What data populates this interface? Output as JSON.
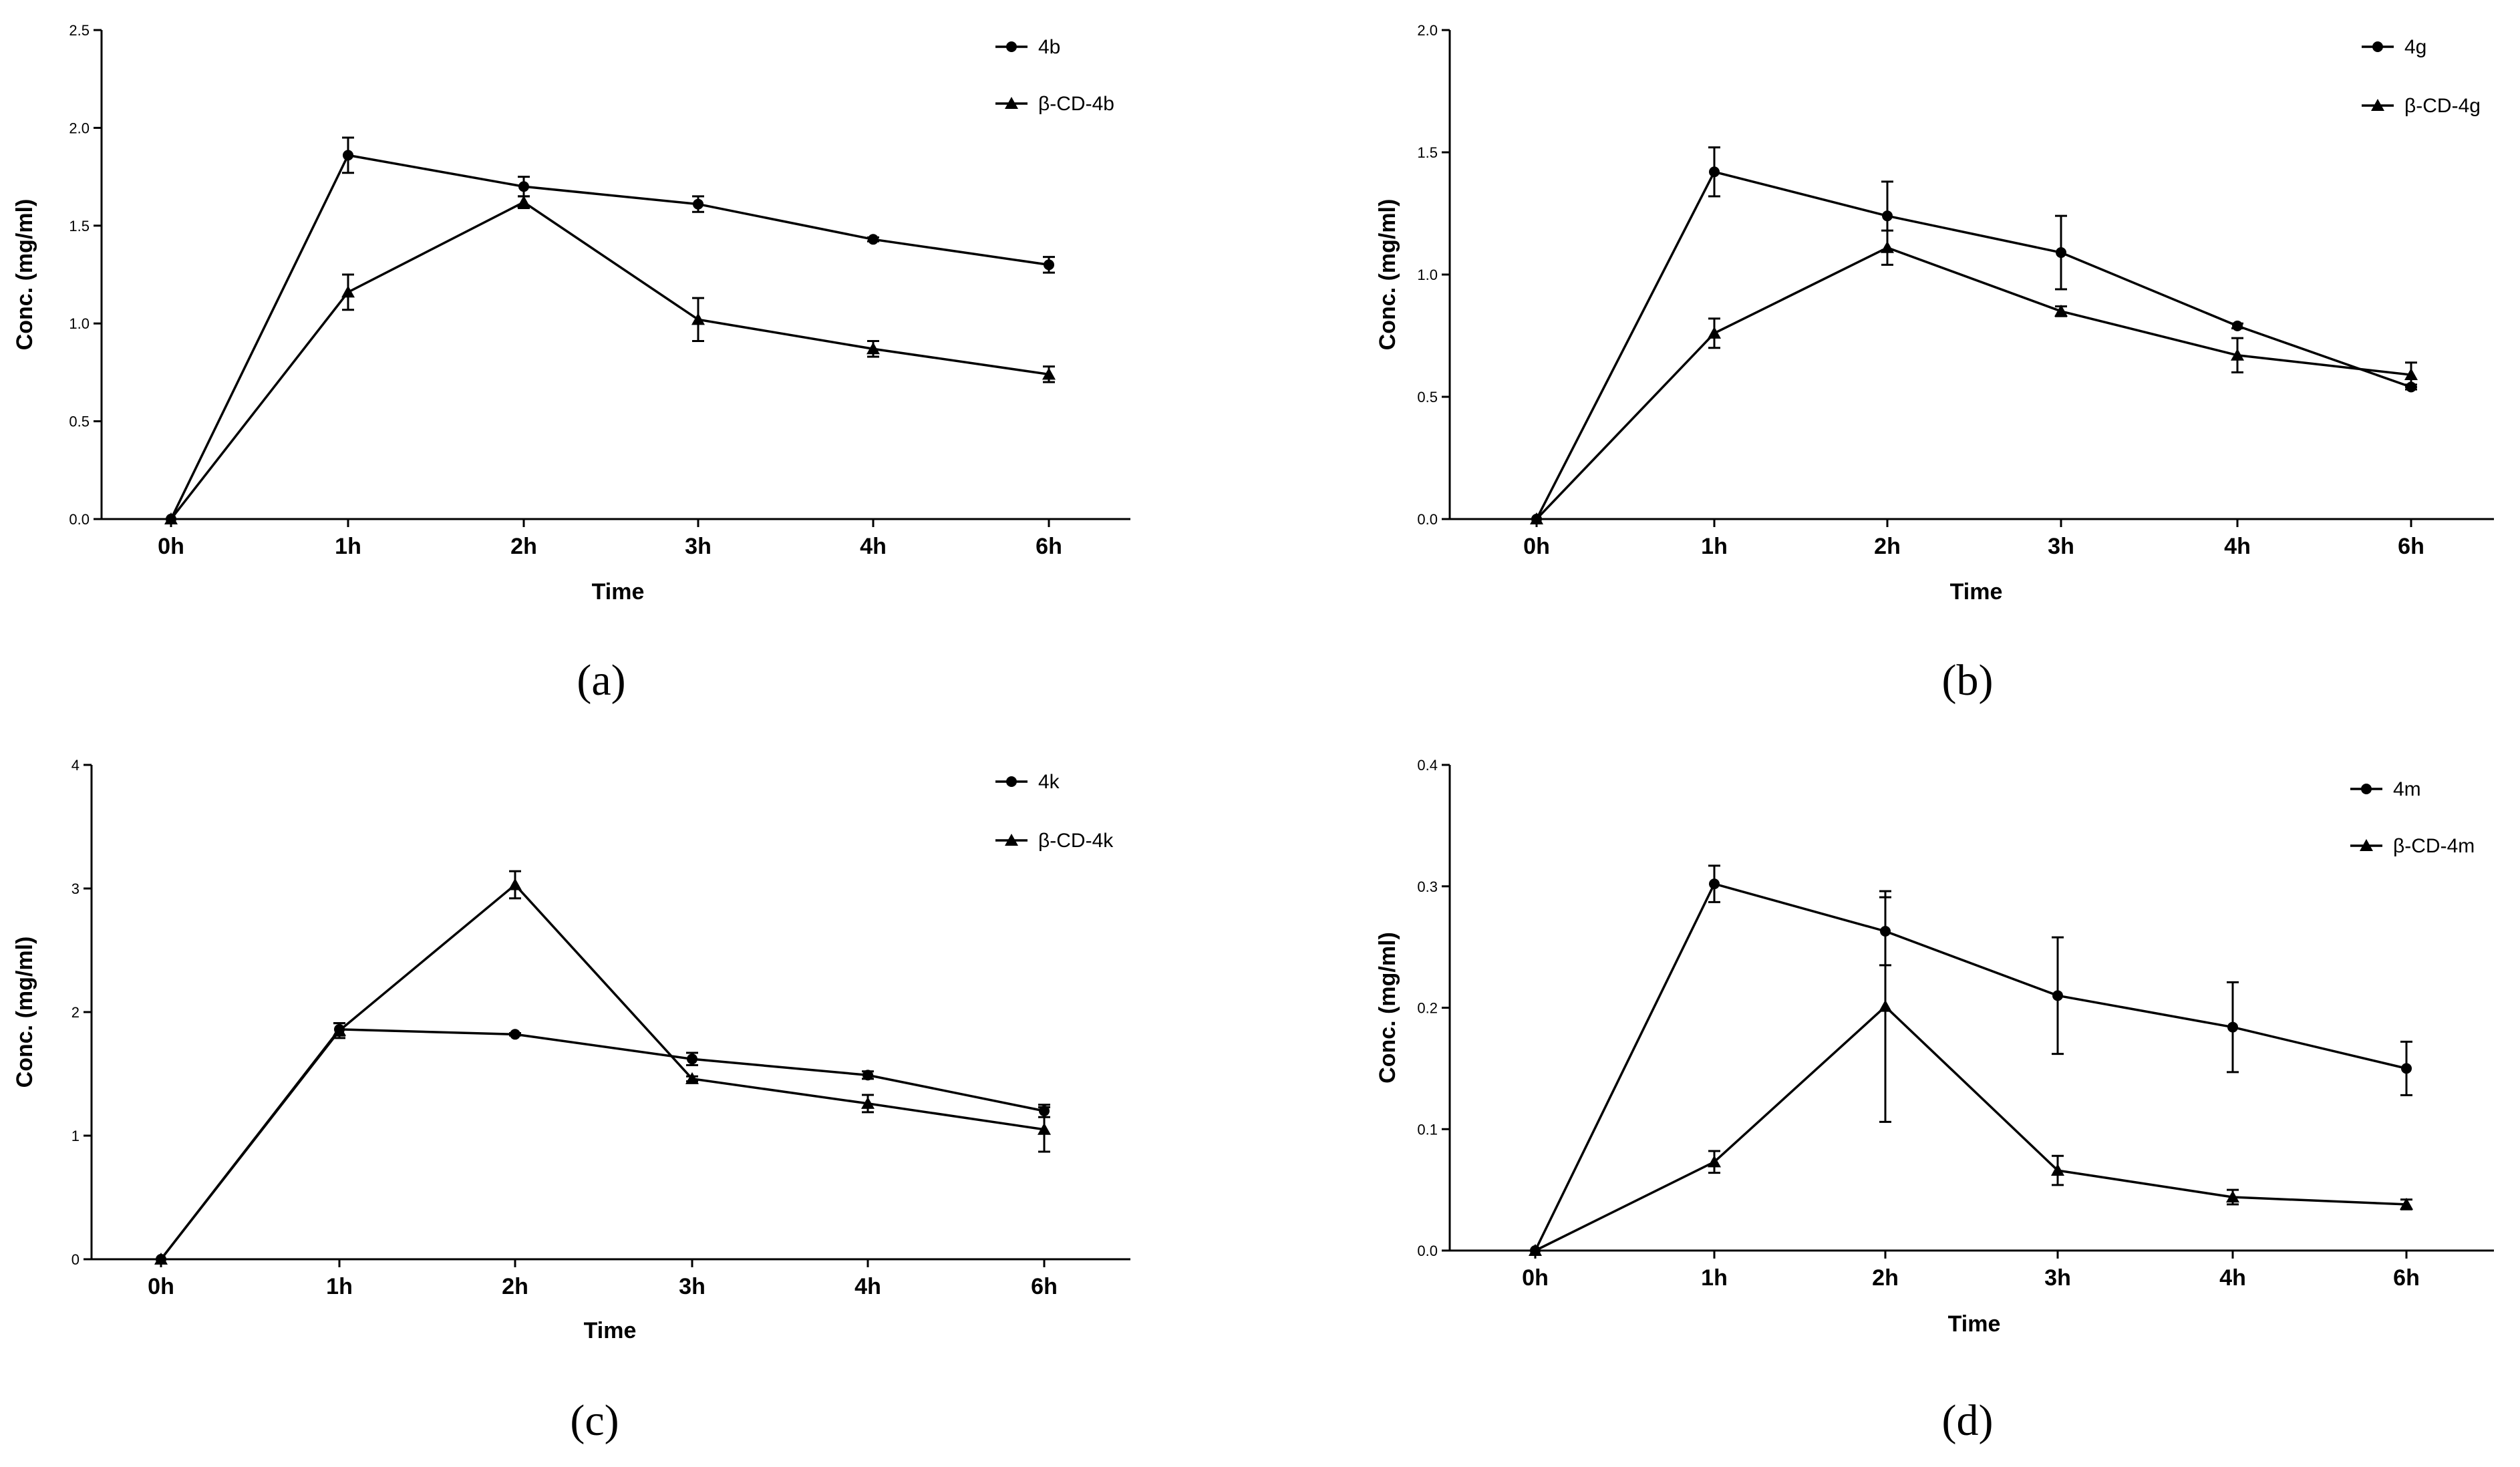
{
  "chart_data": [
    {
      "type": "line",
      "panel_label": "(a)",
      "categories": [
        "0h",
        "1h",
        "2h",
        "3h",
        "4h",
        "6h"
      ],
      "xlabel": "Time",
      "ylabel": "Conc. (mg/ml)",
      "ylim": [
        0,
        2.5
      ],
      "yticks": [
        0.0,
        0.5,
        1.0,
        1.5,
        2.0,
        2.5
      ],
      "ytick_labels": [
        "0.0",
        "0.5",
        "1.0",
        "1.5",
        "2.0",
        "2.5"
      ],
      "legend_position": "top-right",
      "series": [
        {
          "name": "4b",
          "marker": "circle",
          "values": [
            0,
            1.86,
            1.7,
            1.61,
            1.43,
            1.3
          ],
          "errors": [
            0,
            0.09,
            0.05,
            0.04,
            0.01,
            0.04
          ]
        },
        {
          "name": "β-CD-4b",
          "marker": "triangle",
          "values": [
            0,
            1.16,
            1.62,
            1.02,
            0.87,
            0.74
          ],
          "errors": [
            0,
            0.09,
            0.03,
            0.11,
            0.04,
            0.04
          ]
        }
      ]
    },
    {
      "type": "line",
      "panel_label": "(b)",
      "categories": [
        "0h",
        "1h",
        "2h",
        "3h",
        "4h",
        "6h"
      ],
      "xlabel": "Time",
      "ylabel": "Conc. (mg/ml)",
      "ylim": [
        0,
        2.0
      ],
      "yticks": [
        0.0,
        0.5,
        1.0,
        1.5,
        2.0
      ],
      "ytick_labels": [
        "0.0",
        "0.5",
        "1.0",
        "1.5",
        "2.0"
      ],
      "legend_position": "top-right",
      "series": [
        {
          "name": "4g",
          "marker": "circle",
          "values": [
            0,
            1.42,
            1.24,
            1.09,
            0.79,
            0.54
          ],
          "errors": [
            0,
            0.1,
            0.14,
            0.15,
            0.01,
            0.01
          ]
        },
        {
          "name": "β-CD-4g",
          "marker": "triangle",
          "values": [
            0,
            0.76,
            1.11,
            0.85,
            0.67,
            0.59
          ],
          "errors": [
            0,
            0.06,
            0.07,
            0.02,
            0.07,
            0.05
          ]
        }
      ]
    },
    {
      "type": "line",
      "panel_label": "(c)",
      "categories": [
        "0h",
        "1h",
        "2h",
        "3h",
        "4h",
        "6h"
      ],
      "xlabel": "Time",
      "ylabel": "Conc. (mg/ml)",
      "ylim": [
        0,
        4
      ],
      "yticks": [
        0,
        1,
        2,
        3,
        4
      ],
      "ytick_labels": [
        "0",
        "1",
        "2",
        "3",
        "4"
      ],
      "legend_position": "top-right",
      "series": [
        {
          "name": "4k",
          "marker": "circle",
          "values": [
            0,
            1.86,
            1.82,
            1.62,
            1.49,
            1.2
          ],
          "errors": [
            0,
            0.05,
            0.01,
            0.05,
            0.03,
            0.05
          ]
        },
        {
          "name": "β-CD-4k",
          "marker": "triangle",
          "values": [
            0,
            1.85,
            3.03,
            1.46,
            1.26,
            1.05
          ],
          "errors": [
            0,
            0.06,
            0.11,
            0.02,
            0.07,
            0.18
          ]
        }
      ]
    },
    {
      "type": "line",
      "panel_label": "(d)",
      "categories": [
        "0h",
        "1h",
        "2h",
        "3h",
        "4h",
        "6h"
      ],
      "xlabel": "Time",
      "ylabel": "Conc. (mg/ml)",
      "ylim": [
        0,
        0.4
      ],
      "yticks": [
        0.0,
        0.1,
        0.2,
        0.3,
        0.4
      ],
      "ytick_labels": [
        "0.0",
        "0.1",
        "0.2",
        "0.3",
        "0.4"
      ],
      "legend_position": "top-right",
      "series": [
        {
          "name": "4m",
          "marker": "circle",
          "values": [
            0,
            0.302,
            0.263,
            0.21,
            0.184,
            0.15
          ],
          "errors": [
            0,
            0.015,
            0.028,
            0.048,
            0.037,
            0.022
          ]
        },
        {
          "name": "β-CD-4m",
          "marker": "triangle",
          "values": [
            0,
            0.073,
            0.201,
            0.066,
            0.044,
            0.038
          ],
          "errors": [
            0,
            0.009,
            0.095,
            0.012,
            0.006,
            0.004
          ]
        }
      ]
    }
  ]
}
